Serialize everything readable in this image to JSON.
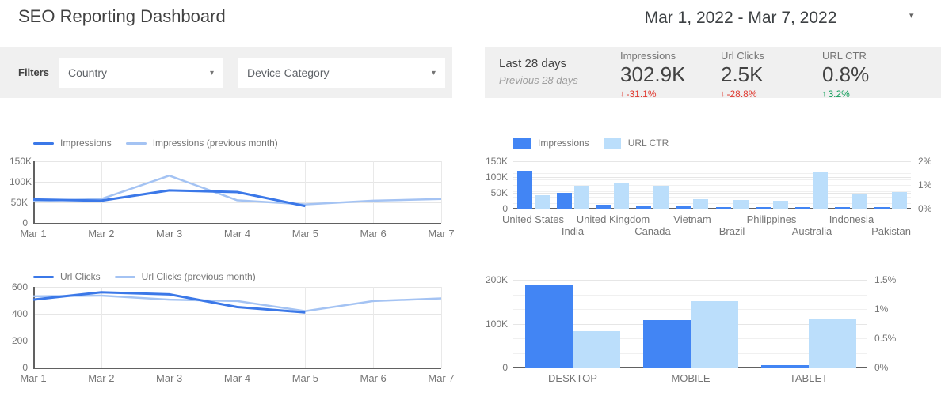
{
  "header": {
    "title": "SEO Reporting Dashboard",
    "date_range": "Mar 1, 2022 - Mar 7, 2022"
  },
  "filters": {
    "label": "Filters",
    "country": {
      "value": "Country"
    },
    "device": {
      "value": "Device Category"
    }
  },
  "scorecard": {
    "period_current": "Last 28 days",
    "period_previous": "Previous 28 days",
    "metrics": [
      {
        "label": "Impressions",
        "value": "302.9K",
        "delta": "-31.1%",
        "direction": "down"
      },
      {
        "label": "Url Clicks",
        "value": "2.5K",
        "delta": "-28.8%",
        "direction": "down"
      },
      {
        "label": "URL CTR",
        "value": "0.8%",
        "delta": "3.2%",
        "direction": "up"
      }
    ],
    "delta_colors": {
      "down": "#e0382e",
      "up": "#0f9d58"
    }
  },
  "colors": {
    "series_dark": "#3b78e8",
    "series_light": "#a4c3f3",
    "bar_dark": "#4285f4",
    "bar_light": "#bbdefb"
  },
  "chart_data": [
    {
      "type": "line",
      "title": "Impressions vs previous month",
      "x": [
        "Mar 1",
        "Mar 2",
        "Mar 3",
        "Mar 4",
        "Mar 5",
        "Mar 6",
        "Mar 7"
      ],
      "yticks": [
        "150K",
        "100K",
        "50K",
        "0"
      ],
      "ymax": 150000,
      "legend_position": "top",
      "grid": true,
      "series": [
        {
          "name": "Impressions",
          "role": "current",
          "values": [
            57000,
            54000,
            79000,
            75000,
            41000
          ]
        },
        {
          "name": "Impressions (previous month)",
          "role": "previous",
          "values": [
            53000,
            58000,
            115000,
            55000,
            45000,
            54000,
            58000
          ]
        }
      ]
    },
    {
      "type": "bar",
      "title": "Impressions and URL CTR by country",
      "categories": [
        "United States",
        "India",
        "United Kingdom",
        "Canada",
        "Vietnam",
        "Brazil",
        "Philippines",
        "Australia",
        "Indonesia",
        "Pakistan"
      ],
      "yticks_left": [
        "150K",
        "100K",
        "50K",
        "0"
      ],
      "ymax_left": 150000,
      "yticks_right": [
        "2%",
        "1%",
        "0%"
      ],
      "ymax_right": 2,
      "legend_position": "top",
      "grid": true,
      "series": [
        {
          "name": "Impressions",
          "axis": "left",
          "values": [
            120000,
            50000,
            12000,
            10000,
            7000,
            5000,
            4500,
            4000,
            4000,
            3000
          ]
        },
        {
          "name": "URL CTR",
          "axis": "right",
          "values": [
            0.55,
            0.95,
            1.1,
            0.95,
            0.4,
            0.37,
            0.32,
            1.55,
            0.62,
            0.7
          ]
        }
      ]
    },
    {
      "type": "line",
      "title": "Url Clicks vs previous month",
      "x": [
        "Mar 1",
        "Mar 2",
        "Mar 3",
        "Mar 4",
        "Mar 5",
        "Mar 6",
        "Mar 7"
      ],
      "yticks": [
        "600",
        "400",
        "200",
        "0"
      ],
      "ymax": 600,
      "legend_position": "top",
      "grid": true,
      "series": [
        {
          "name": "Url Clicks",
          "role": "current",
          "values": [
            505,
            560,
            545,
            450,
            410
          ]
        },
        {
          "name": "Url Clicks (previous month)",
          "role": "previous",
          "values": [
            530,
            535,
            505,
            495,
            420,
            495,
            515
          ]
        }
      ]
    },
    {
      "type": "bar",
      "title": "Impressions and URL CTR by device category",
      "categories": [
        "DESKTOP",
        "MOBILE",
        "TABLET"
      ],
      "yticks_left": [
        "200K",
        "100K",
        "0"
      ],
      "ymax_left": 200000,
      "yticks_right": [
        "1.5%",
        "1%",
        "0.5%",
        "0%"
      ],
      "ymax_right": 1.5,
      "legend_position": "none",
      "grid": true,
      "series": [
        {
          "name": "Impressions",
          "axis": "left",
          "values": [
            188000,
            109000,
            5000
          ]
        },
        {
          "name": "URL CTR",
          "axis": "right",
          "values": [
            0.62,
            1.13,
            0.83
          ]
        }
      ]
    }
  ]
}
